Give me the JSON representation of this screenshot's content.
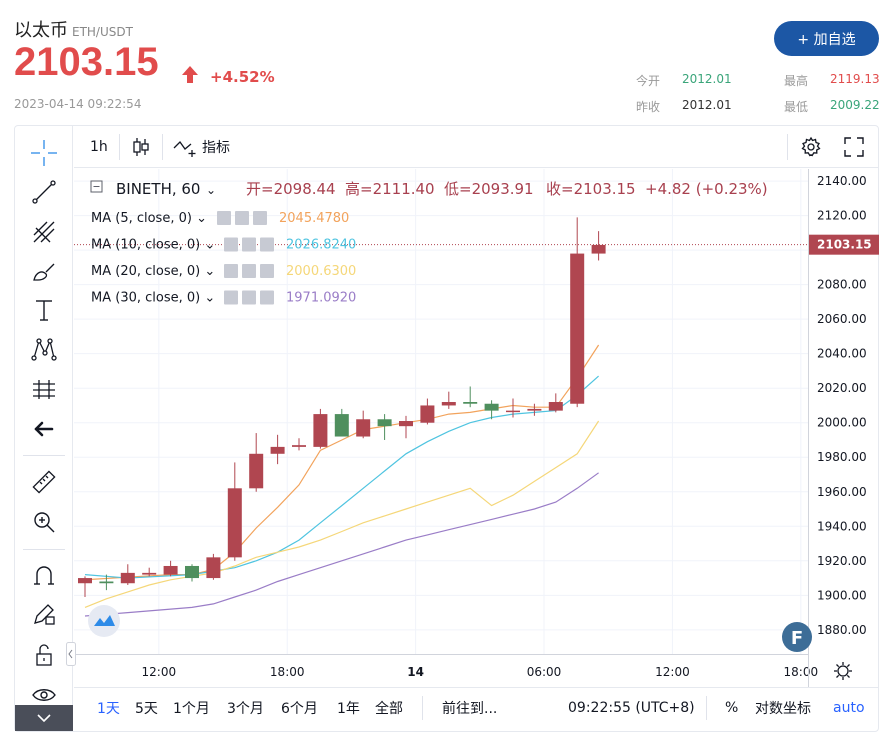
{
  "header": {
    "name": "以太币",
    "pair": "ETH/USDT",
    "price": "2103.15",
    "change": "+4.52%",
    "timestamp": "2023-04-14 09:22:54",
    "add_button": "+ 加自选",
    "stats": {
      "open_label": "今开",
      "open_value": "2012.01",
      "high_label": "最高",
      "high_value": "2119.13",
      "prev_close_label": "昨收",
      "prev_close_value": "2012.01",
      "low_label": "最低",
      "low_value": "2009.22"
    }
  },
  "toolbar": {
    "interval": "1h",
    "indicators": "指标"
  },
  "legend": {
    "symbol": "BINETH, 60",
    "open": "开=2098.44",
    "high": "高=2111.40",
    "low": "低=2093.91",
    "close": "收=2103.15",
    "change": "+4.82 (+0.23%)"
  },
  "bottom": {
    "ranges": [
      "1天",
      "5天",
      "1个月",
      "3个月",
      "6个月",
      "1年",
      "全部"
    ],
    "goto": "前往到...",
    "clock": "09:22:55 (UTC+8)",
    "percent": "%",
    "log": "对数坐标",
    "auto": "auto"
  },
  "colors": {
    "up": "#b04650",
    "down": "#4f8f5e",
    "ma5": "#f2a35c",
    "ma10": "#4fc4e0",
    "ma20": "#f5d779",
    "ma30": "#9a7dc7",
    "accent": "#2962ff",
    "price_red": "#e14c4c",
    "stat_green": "#3aa57a"
  },
  "chart_data": {
    "type": "candlestick",
    "title": "BINETH, 60",
    "ylim": [
      1866,
      2147
    ],
    "yticks": [
      1880,
      1900,
      1920,
      1940,
      1960,
      1980,
      2000,
      2020,
      2040,
      2060,
      2080,
      2100,
      2120,
      2140
    ],
    "ytick_labels": [
      "1880.00",
      "1900.00",
      "1920.00",
      "1940.00",
      "1960.00",
      "1980.00",
      "2000.00",
      "2020.00",
      "2040.00",
      "2060.00",
      "2080.00",
      "2100.00",
      "2120.00",
      "2140.00"
    ],
    "xticks": [
      {
        "pos": 3.45,
        "label": "12:00"
      },
      {
        "pos": 9.45,
        "label": "18:00"
      },
      {
        "pos": 15.45,
        "label": "14"
      },
      {
        "pos": 21.45,
        "label": "06:00"
      },
      {
        "pos": 27.45,
        "label": "12:00"
      },
      {
        "pos": 33.45,
        "label": "18:00"
      }
    ],
    "last_price_label": "2103.15",
    "last_price": 2103.15,
    "candles": [
      {
        "o": 1907,
        "h": 1911,
        "l": 1899,
        "c": 1910
      },
      {
        "o": 1908,
        "h": 1912,
        "l": 1903,
        "c": 1907
      },
      {
        "o": 1907,
        "h": 1918,
        "l": 1906,
        "c": 1913
      },
      {
        "o": 1912,
        "h": 1916,
        "l": 1911,
        "c": 1913
      },
      {
        "o": 1912,
        "h": 1920,
        "l": 1911,
        "c": 1917
      },
      {
        "o": 1917,
        "h": 1918,
        "l": 1908,
        "c": 1910
      },
      {
        "o": 1910,
        "h": 1924,
        "l": 1909,
        "c": 1922
      },
      {
        "o": 1922,
        "h": 1977,
        "l": 1920,
        "c": 1962
      },
      {
        "o": 1962,
        "h": 1994,
        "l": 1960,
        "c": 1982
      },
      {
        "o": 1982,
        "h": 1993,
        "l": 1976,
        "c": 1986
      },
      {
        "o": 1986,
        "h": 1991,
        "l": 1984,
        "c": 1987
      },
      {
        "o": 1986,
        "h": 2008,
        "l": 1985,
        "c": 2005
      },
      {
        "o": 2005,
        "h": 2008,
        "l": 1993,
        "c": 1992
      },
      {
        "o": 1992,
        "h": 2007,
        "l": 1991,
        "c": 2002
      },
      {
        "o": 2002,
        "h": 2005,
        "l": 1990,
        "c": 1998
      },
      {
        "o": 1998,
        "h": 2004,
        "l": 1991,
        "c": 2001
      },
      {
        "o": 2000,
        "h": 2014,
        "l": 1999,
        "c": 2010
      },
      {
        "o": 2010,
        "h": 2018,
        "l": 2008,
        "c": 2012
      },
      {
        "o": 2012,
        "h": 2021,
        "l": 2009,
        "c": 2011
      },
      {
        "o": 2011,
        "h": 2013,
        "l": 2002,
        "c": 2007
      },
      {
        "o": 2007,
        "h": 2014,
        "l": 2003,
        "c": 2007
      },
      {
        "o": 2007,
        "h": 2011,
        "l": 2004,
        "c": 2008
      },
      {
        "o": 2007,
        "h": 2017,
        "l": 2006,
        "c": 2012
      },
      {
        "o": 2011,
        "h": 2119,
        "l": 2009,
        "c": 2098
      },
      {
        "o": 2098,
        "h": 2111,
        "l": 2094,
        "c": 2103
      }
    ],
    "series": [
      {
        "name": "MA (5, close, 0)",
        "value_label": "2045.4780",
        "values": [
          null,
          null,
          null,
          null,
          1912,
          1912,
          1915,
          1925,
          1939,
          1951,
          1964,
          1984,
          1990,
          1996,
          1998,
          2000,
          2002,
          2005,
          2006,
          2008,
          2010,
          2009,
          2009,
          2026,
          2045
        ]
      },
      {
        "name": "MA (10, close, 0)",
        "value_label": "2026.8240",
        "values": [
          null,
          null,
          null,
          null,
          null,
          null,
          null,
          null,
          null,
          1925,
          1932,
          1942,
          1952,
          1962,
          1972,
          1982,
          1989,
          1995,
          2000,
          2003,
          2005,
          2006,
          2007,
          2016,
          2027
        ]
      },
      {
        "name": "MA (20, close, 0)",
        "value_label": "2000.6300",
        "values": [
          null,
          null,
          null,
          null,
          null,
          null,
          null,
          null,
          null,
          null,
          null,
          null,
          null,
          null,
          null,
          null,
          null,
          null,
          null,
          1952,
          1958,
          1966,
          1974,
          1982,
          2001
        ]
      },
      {
        "name": "MA (30, close, 0)",
        "value_label": "1971.0920",
        "values": [
          null,
          null,
          null,
          null,
          null,
          null,
          null,
          null,
          null,
          null,
          null,
          null,
          null,
          null,
          null,
          null,
          null,
          null,
          null,
          null,
          null,
          null,
          null,
          1962,
          1971
        ]
      }
    ],
    "ma_pre": {
      "ma20": [
        1893,
        1898,
        1902,
        1906,
        1909,
        1911,
        1913,
        1917,
        1922,
        1925,
        1928,
        1932,
        1937,
        1942,
        1946,
        1950,
        1954,
        1958,
        1962
      ],
      "ma30": [
        1888,
        1889,
        1890,
        1891,
        1892,
        1893,
        1895,
        1899,
        1903,
        1908,
        1912,
        1916,
        1920,
        1924,
        1928,
        1932,
        1935,
        1938,
        1941,
        1944,
        1947,
        1950,
        1954
      ]
    }
  }
}
